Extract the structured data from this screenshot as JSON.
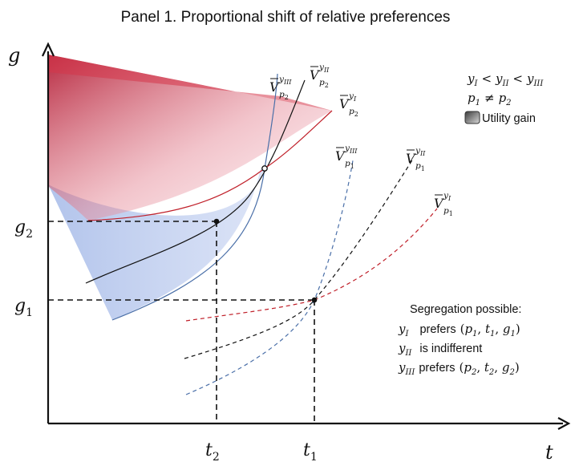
{
  "title": "Panel 1. Proportional shift of relative preferences",
  "axes": {
    "x_label": "t",
    "y_label": "g",
    "x_ticks": [
      {
        "base": "t",
        "sub": "2"
      },
      {
        "base": "t",
        "sub": "1"
      }
    ],
    "y_ticks": [
      {
        "base": "g",
        "sub": "2"
      },
      {
        "base": "g",
        "sub": "1"
      }
    ]
  },
  "curve_labels": {
    "p2": [
      {
        "base": "V",
        "income": "y",
        "income_level": "III",
        "price": "p",
        "price_index": "2"
      },
      {
        "base": "V",
        "income": "y",
        "income_level": "II",
        "price": "p",
        "price_index": "2"
      },
      {
        "base": "V",
        "income": "y",
        "income_level": "I",
        "price": "p",
        "price_index": "2"
      }
    ],
    "p1": [
      {
        "base": "V",
        "income": "y",
        "income_level": "III",
        "price": "p",
        "price_index": "1"
      },
      {
        "base": "V",
        "income": "y",
        "income_level": "II",
        "price": "p",
        "price_index": "1"
      },
      {
        "base": "V",
        "income": "y",
        "income_level": "I",
        "price": "p",
        "price_index": "1"
      }
    ]
  },
  "legend": {
    "income_order": {
      "a": "y",
      "a_sub": "I",
      "op1": "<",
      "b": "y",
      "b_sub": "II",
      "op2": "<",
      "c": "y",
      "c_sub": "III"
    },
    "price_relation": {
      "a": "p",
      "a_sub": "1",
      "op": "≠",
      "b": "p",
      "b_sub": "2"
    },
    "utility_gain_label": "Utility gain"
  },
  "notes": {
    "heading": "Segregation possible:",
    "lines": [
      {
        "who": "y",
        "who_sub": "I",
        "verb": "prefers",
        "bundle": [
          "p",
          "1",
          "t",
          "1",
          "g",
          "1"
        ]
      },
      {
        "who": "y",
        "who_sub": "II",
        "verb": "is indifferent"
      },
      {
        "who": "y",
        "who_sub": "III",
        "verb": "prefers",
        "bundle": [
          "p",
          "2",
          "t",
          "2",
          "g",
          "2"
        ]
      }
    ]
  },
  "colors": {
    "red_curve": "#c0202a",
    "black_curve": "#111111",
    "blue_curve": "#4a6fa8",
    "red_fill": "#d6364a",
    "blue_fill": "#b8c8ee",
    "grey_legend": "#7a7a7a"
  }
}
